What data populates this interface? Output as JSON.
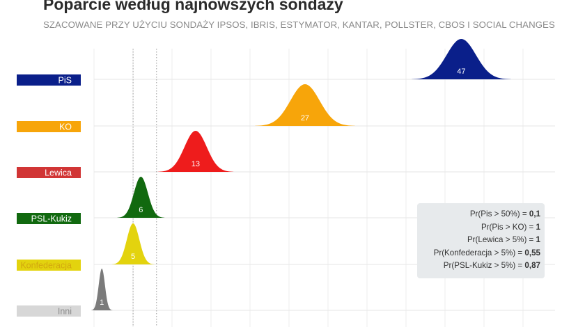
{
  "title": "Poparcie według najnowszych sondaży",
  "subtitle": "SZACOWANE PRZY UŻYCIU SONDAŻY IPSOS, IBRIS, ESTYMATOR, KANTAR, POLLSTER, CBOS I SOCIAL CHANGES",
  "chart_data": {
    "type": "area",
    "xlim": [
      0,
      59
    ],
    "reference_lines": [
      5,
      8
    ],
    "series": [
      {
        "name": "PiS",
        "mean": 47,
        "label": "47",
        "color": "#0a1f8a",
        "label_color": "#ffffff"
      },
      {
        "name": "KO",
        "mean": 27,
        "label": "27",
        "color": "#f7a50a",
        "label_color": "#ffffff"
      },
      {
        "name": "Lewica",
        "mean": 13,
        "label": "13",
        "color": "#ee1c1c",
        "label_color": "#ffffff"
      },
      {
        "name": "PSL-Kukiz",
        "mean": 6,
        "label": "6",
        "color": "#11690f",
        "label_color": "#ffffff"
      },
      {
        "name": "Konfederacja",
        "mean": 5,
        "label": "5",
        "color": "#e3d30e",
        "label_color": "#ffffff"
      },
      {
        "name": "Inni",
        "mean": 1,
        "label": "1",
        "color": "#7b7b7b",
        "label_color": "#ffffff"
      }
    ],
    "legend_colors": [
      "#0a1f8a",
      "#f7a50a",
      "#d13535",
      "#11690f",
      "#e3d30e",
      "#d7d7d7"
    ],
    "legend_text_colors": [
      "#ffffff",
      "#ffffff",
      "#ffffff",
      "#ffffff",
      "#d3a80f",
      "#8a8a8a"
    ]
  },
  "probabilities": [
    {
      "text": "Pr(Pis > 50%) = ",
      "value": "0,1"
    },
    {
      "text": "Pr(Pis > KO) = ",
      "value": "1"
    },
    {
      "text": "Pr(Lewica > 5%) = ",
      "value": "1"
    },
    {
      "text": "Pr(Konfederacja > 5%) = ",
      "value": "0,55"
    },
    {
      "text": "Pr(PSL-Kukiz > 5%) = ",
      "value": "0,87"
    }
  ]
}
